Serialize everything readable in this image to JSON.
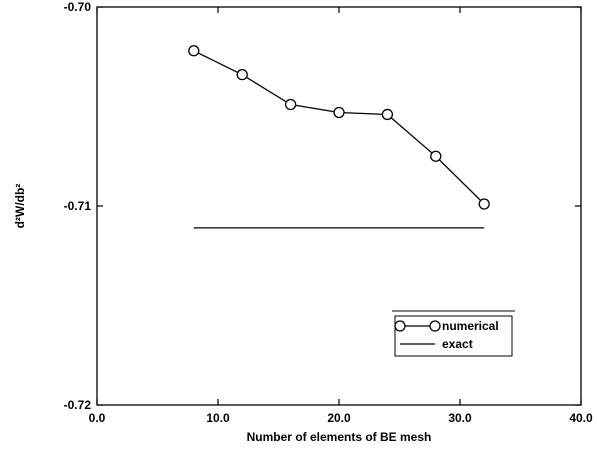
{
  "chart_data": {
    "type": "line",
    "title": "",
    "xlabel": "Number of elements of BE mesh",
    "ylabel": "d²W/db²",
    "xlim": [
      0.0,
      40.0
    ],
    "ylim": [
      -0.72,
      -0.7
    ],
    "x_ticks": [
      0.0,
      10.0,
      20.0,
      30.0,
      40.0
    ],
    "x_tick_labels": [
      "0.0",
      "10.0",
      "20.0",
      "30.0",
      "40.0"
    ],
    "y_ticks": [
      -0.72,
      -0.71,
      -0.7
    ],
    "y_tick_labels": [
      "-0.72",
      "-0.71",
      "-0.70"
    ],
    "grid": false,
    "legend_position": "lower-right",
    "series": [
      {
        "name": "numerical",
        "style": "line-circle-markers",
        "x": [
          8,
          12,
          16,
          20,
          24,
          28,
          32
        ],
        "y": [
          -0.7022,
          -0.7034,
          -0.7049,
          -0.7053,
          -0.7054,
          -0.7075,
          -0.7099
        ]
      },
      {
        "name": "exact",
        "style": "line",
        "x": [
          8,
          32
        ],
        "y": [
          -0.7111,
          -0.7111
        ]
      }
    ]
  }
}
